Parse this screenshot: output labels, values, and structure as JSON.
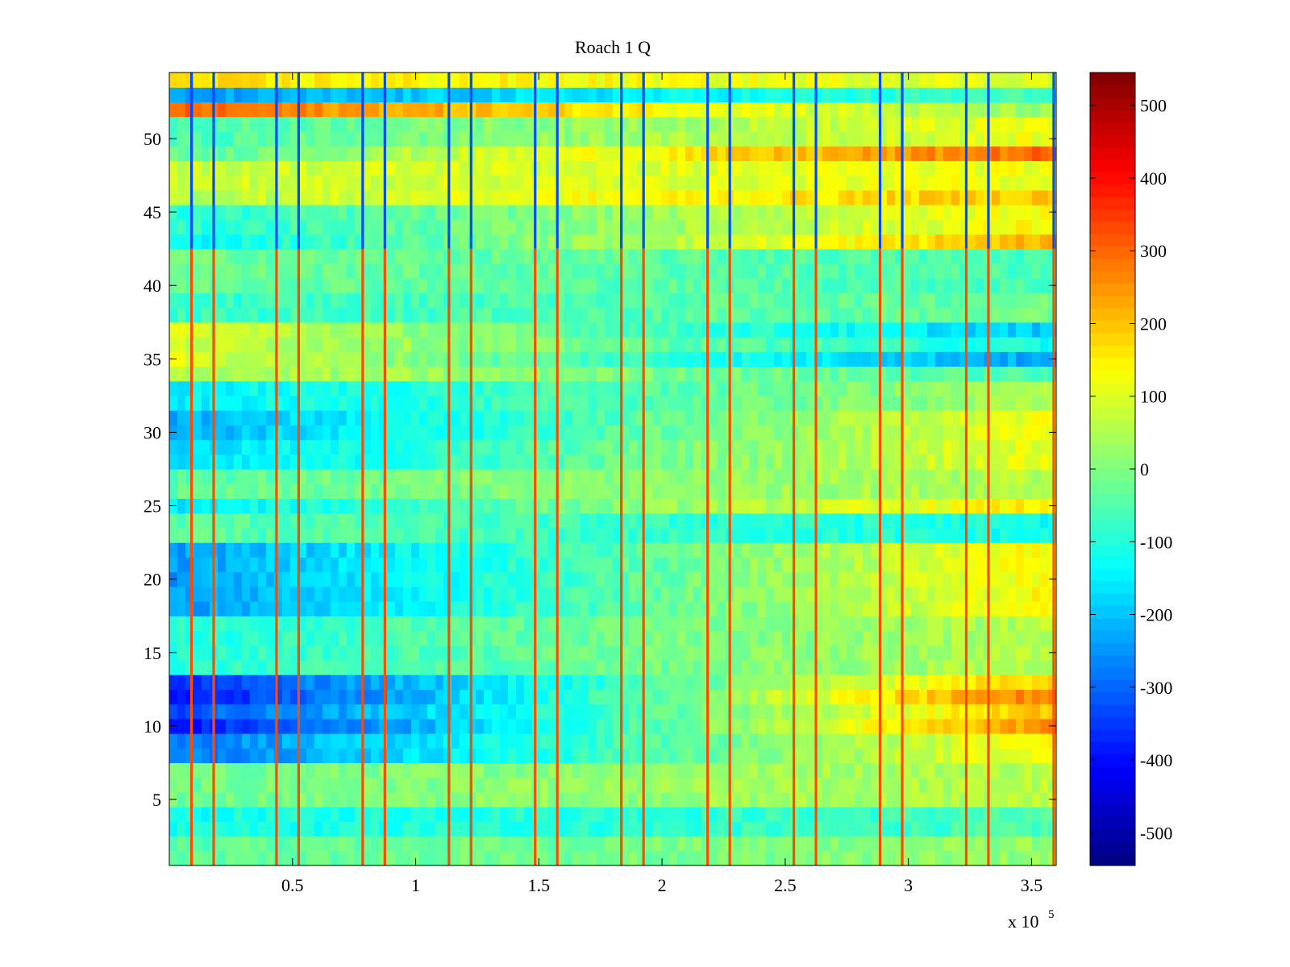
{
  "chart_data": {
    "type": "heatmap",
    "title": "Roach 1 Q",
    "xlabel": "",
    "ylabel": "",
    "x_multiplier_label": "x 10",
    "x_multiplier_exponent": "5",
    "xlim": [
      0,
      360000
    ],
    "ylim": [
      0.5,
      54.5
    ],
    "x_ticks": [
      {
        "value": 50000,
        "label": "0.5"
      },
      {
        "value": 100000,
        "label": "1"
      },
      {
        "value": 150000,
        "label": "1.5"
      },
      {
        "value": 200000,
        "label": "2"
      },
      {
        "value": 250000,
        "label": "2.5"
      },
      {
        "value": 300000,
        "label": "3"
      },
      {
        "value": 350000,
        "label": "3.5"
      }
    ],
    "y_ticks": [
      {
        "value": 5,
        "label": "5"
      },
      {
        "value": 10,
        "label": "10"
      },
      {
        "value": 15,
        "label": "15"
      },
      {
        "value": 20,
        "label": "20"
      },
      {
        "value": 25,
        "label": "25"
      },
      {
        "value": 30,
        "label": "30"
      },
      {
        "value": 35,
        "label": "35"
      },
      {
        "value": 40,
        "label": "40"
      },
      {
        "value": 45,
        "label": "45"
      },
      {
        "value": 50,
        "label": "50"
      }
    ],
    "colorbar": {
      "colormap": "jet",
      "clim": [
        -545,
        545
      ],
      "ticks": [
        {
          "value": 500,
          "label": "500"
        },
        {
          "value": 400,
          "label": "400"
        },
        {
          "value": 300,
          "label": "300"
        },
        {
          "value": 200,
          "label": "200"
        },
        {
          "value": 100,
          "label": "100"
        },
        {
          "value": 0,
          "label": "0"
        },
        {
          "value": -100,
          "label": "-100"
        },
        {
          "value": -200,
          "label": "-200"
        },
        {
          "value": -300,
          "label": "-300"
        },
        {
          "value": -400,
          "label": "-400"
        },
        {
          "value": -500,
          "label": "-500"
        }
      ]
    },
    "grid": false,
    "rows": 54,
    "row_profiles": [
      {
        "rows": [
          1,
          2
        ],
        "start": -40,
        "end": 20
      },
      {
        "rows": [
          3,
          4
        ],
        "start": -120,
        "end": -60
      },
      {
        "rows": [
          5,
          7
        ],
        "start": -20,
        "end": 60
      },
      {
        "rows": [
          8,
          9
        ],
        "start": -280,
        "end": 140
      },
      {
        "rows": [
          10,
          10
        ],
        "start": -400,
        "end": 260
      },
      {
        "rows": [
          11,
          11
        ],
        "start": -330,
        "end": 200
      },
      {
        "rows": [
          12,
          12
        ],
        "start": -400,
        "end": 280
      },
      {
        "rows": [
          13,
          13
        ],
        "start": -360,
        "end": 200
      },
      {
        "rows": [
          14,
          17
        ],
        "start": -100,
        "end": 60
      },
      {
        "rows": [
          18,
          22
        ],
        "start": -240,
        "end": 140
      },
      {
        "rows": [
          23,
          24
        ],
        "start": -40,
        "end": -120
      },
      {
        "rows": [
          25,
          25
        ],
        "start": -160,
        "end": 160
      },
      {
        "rows": [
          26,
          27
        ],
        "start": -40,
        "end": 60
      },
      {
        "rows": [
          28,
          29
        ],
        "start": -180,
        "end": 120
      },
      {
        "rows": [
          30,
          31
        ],
        "start": -220,
        "end": 120
      },
      {
        "rows": [
          32,
          33
        ],
        "start": -150,
        "end": 40
      },
      {
        "rows": [
          34,
          34
        ],
        "start": 60,
        "end": -60
      },
      {
        "rows": [
          35,
          35
        ],
        "start": 100,
        "end": -240
      },
      {
        "rows": [
          36,
          36
        ],
        "start": 80,
        "end": -120
      },
      {
        "rows": [
          37,
          37
        ],
        "start": 100,
        "end": -200
      },
      {
        "rows": [
          38,
          39
        ],
        "start": -80,
        "end": -20
      },
      {
        "rows": [
          40,
          42
        ],
        "start": -20,
        "end": -60
      },
      {
        "rows": [
          43,
          43
        ],
        "start": -140,
        "end": 220
      },
      {
        "rows": [
          44,
          45
        ],
        "start": -100,
        "end": 140
      },
      {
        "rows": [
          46,
          46
        ],
        "start": 60,
        "end": 200
      },
      {
        "rows": [
          47,
          48
        ],
        "start": 80,
        "end": 120
      },
      {
        "rows": [
          49,
          49
        ],
        "start": -40,
        "end": 300
      },
      {
        "rows": [
          50,
          51
        ],
        "start": -60,
        "end": 120
      },
      {
        "rows": [
          52,
          52
        ],
        "start": 300,
        "end": 20
      },
      {
        "rows": [
          53,
          53
        ],
        "start": -250,
        "end": -60
      },
      {
        "rows": [
          54,
          54
        ],
        "start": 160,
        "end": 100
      }
    ],
    "vertical_stripes": [
      {
        "x": 9000,
        "polarity": "split"
      },
      {
        "x": 18000,
        "polarity": "split"
      },
      {
        "x": 43500,
        "polarity": "split"
      },
      {
        "x": 52500,
        "polarity": "split"
      },
      {
        "x": 78500,
        "polarity": "split"
      },
      {
        "x": 87500,
        "polarity": "split"
      },
      {
        "x": 113500,
        "polarity": "split"
      },
      {
        "x": 122500,
        "polarity": "split"
      },
      {
        "x": 148500,
        "polarity": "split"
      },
      {
        "x": 157500,
        "polarity": "split"
      },
      {
        "x": 183500,
        "polarity": "split"
      },
      {
        "x": 192500,
        "polarity": "split"
      },
      {
        "x": 218500,
        "polarity": "split"
      },
      {
        "x": 227500,
        "polarity": "split"
      },
      {
        "x": 253500,
        "polarity": "split"
      },
      {
        "x": 262500,
        "polarity": "split"
      },
      {
        "x": 288500,
        "polarity": "split"
      },
      {
        "x": 297500,
        "polarity": "split"
      },
      {
        "x": 323500,
        "polarity": "split"
      },
      {
        "x": 332500,
        "polarity": "split"
      },
      {
        "x": 359000,
        "polarity": "split"
      }
    ]
  }
}
